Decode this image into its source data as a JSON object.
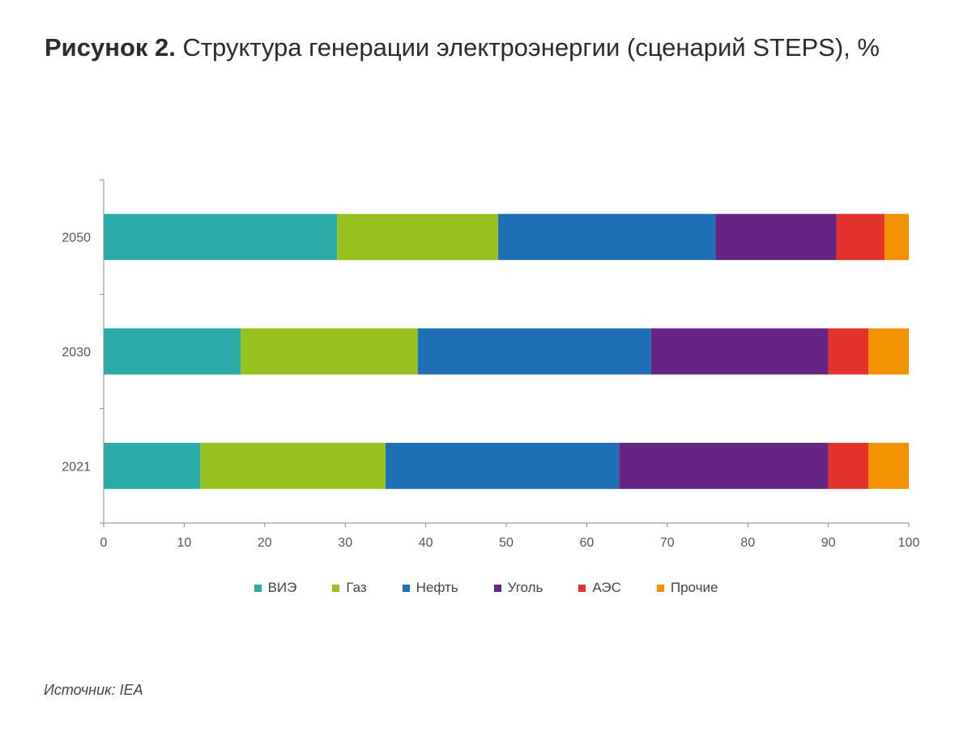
{
  "title": {
    "bold": "Рисунок 2.",
    "text": " Структура генерации электроэнергии (сценарий STEPS), %"
  },
  "source": "Источник: IEA",
  "chart_data": {
    "type": "bar",
    "orientation": "horizontal",
    "stacked": true,
    "categories": [
      "2050",
      "2030",
      "2021"
    ],
    "xlim": [
      0,
      100
    ],
    "xticks": [
      0,
      10,
      20,
      30,
      40,
      50,
      60,
      70,
      80,
      90,
      100
    ],
    "grid": false,
    "legend_position": "bottom",
    "series": [
      {
        "name": "ВИЭ",
        "color": "#2aabaa",
        "values": [
          29,
          17,
          12
        ]
      },
      {
        "name": "Газ",
        "color": "#97c11f",
        "values": [
          20,
          22,
          23
        ]
      },
      {
        "name": "Нефть",
        "color": "#1f6fb4",
        "values": [
          27,
          29,
          29
        ]
      },
      {
        "name": "Уголь",
        "color": "#662483",
        "values": [
          15,
          22,
          26
        ]
      },
      {
        "name": "АЭС",
        "color": "#e3322b",
        "values": [
          6,
          5,
          5
        ]
      },
      {
        "name": "Прочие",
        "color": "#f39200",
        "values": [
          3,
          5,
          5
        ]
      }
    ]
  }
}
